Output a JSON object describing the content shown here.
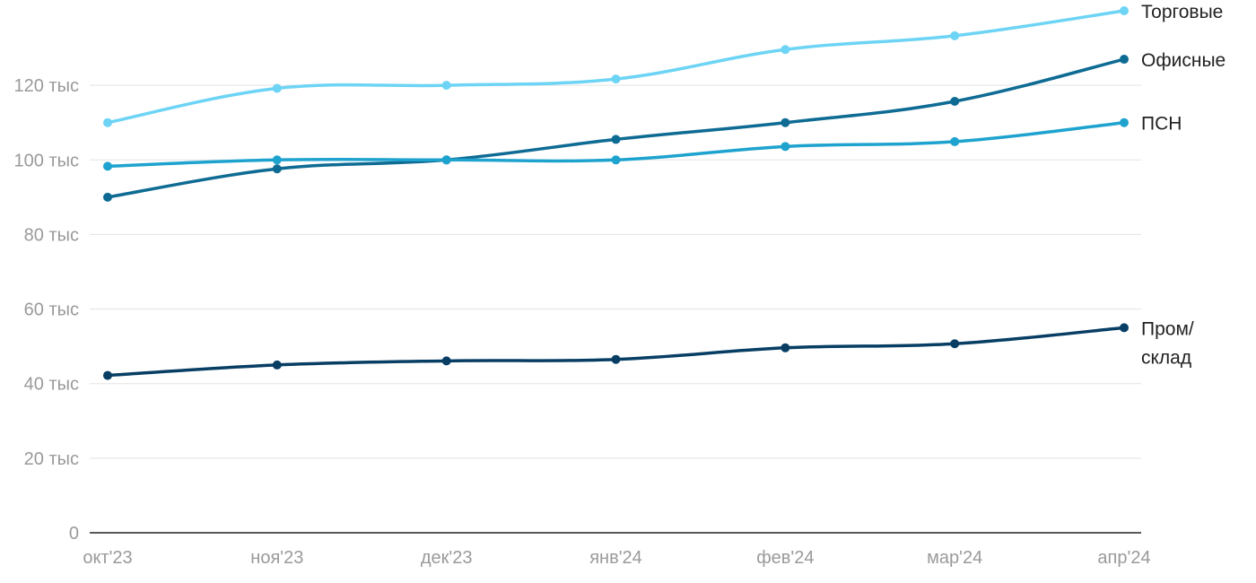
{
  "chart_data": {
    "type": "line",
    "categories": [
      "окт'23",
      "ноя'23",
      "дек'23",
      "янв'24",
      "фев'24",
      "мар'24",
      "апр'24"
    ],
    "ylim": [
      0,
      140000
    ],
    "y_ticks": [
      {
        "value": 0,
        "label": "0"
      },
      {
        "value": 20000,
        "label": "20 тыс"
      },
      {
        "value": 40000,
        "label": "40 тыс"
      },
      {
        "value": 60000,
        "label": "60 тыс"
      },
      {
        "value": 80000,
        "label": "80 тыс"
      },
      {
        "value": 100000,
        "label": "100 тыс"
      },
      {
        "value": 120000,
        "label": "120 тыс"
      }
    ],
    "grid": true,
    "legend": "direct labels at line ends",
    "series": [
      {
        "key": "trade",
        "name": "Торговые",
        "name_lines": [
          "Торговые"
        ],
        "color": "#6dd4f5",
        "values": [
          110000,
          119200,
          120000,
          121700,
          129600,
          133300,
          140000
        ]
      },
      {
        "key": "office",
        "name": "Офисные",
        "name_lines": [
          "Офисные"
        ],
        "color": "#0e6b93",
        "values": [
          90000,
          97600,
          100000,
          105500,
          110000,
          115700,
          127000
        ]
      },
      {
        "key": "psn",
        "name": "ПСН",
        "name_lines": [
          "ПСН"
        ],
        "color": "#1ea3cf",
        "values": [
          98300,
          100000,
          100000,
          100000,
          103600,
          104900,
          110000
        ]
      },
      {
        "key": "industrial",
        "name": "Пром/склад",
        "name_lines": [
          "Пром/",
          "склад"
        ],
        "color": "#083e64",
        "values": [
          42200,
          45000,
          46100,
          46500,
          49600,
          50700,
          55000
        ]
      }
    ]
  }
}
